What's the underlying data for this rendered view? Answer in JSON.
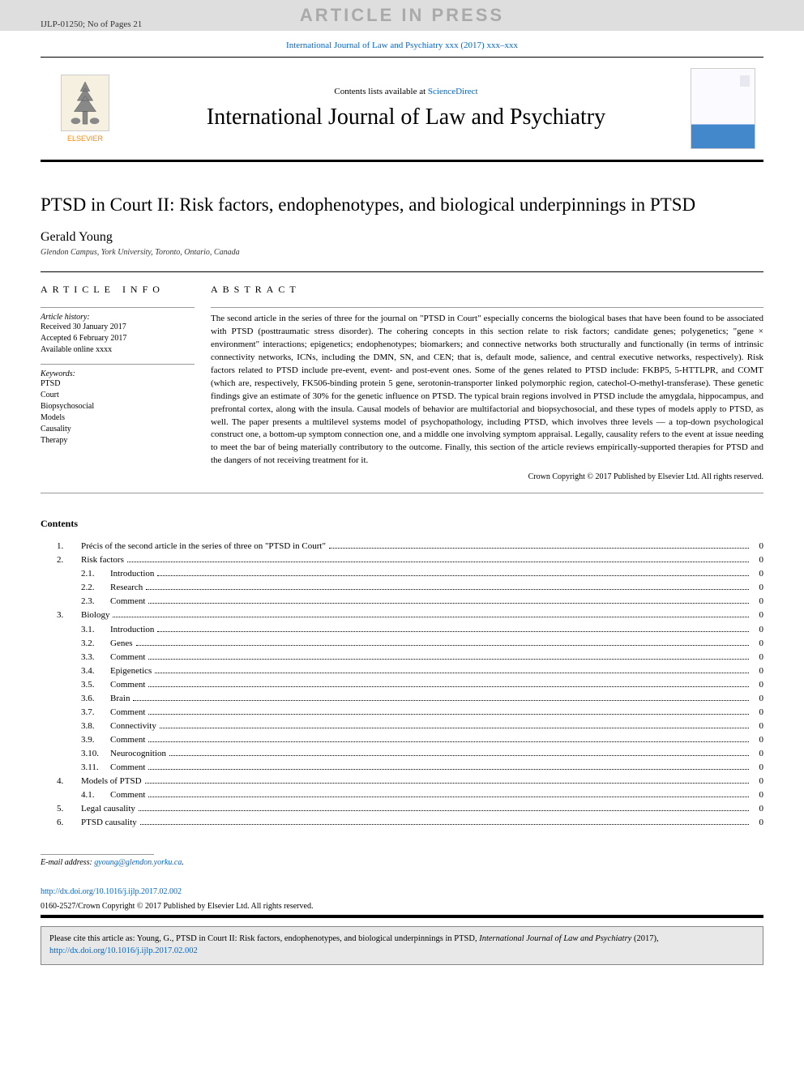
{
  "banner": {
    "text": "ARTICLE IN PRESS",
    "doc_id": "IJLP-01250; No of Pages 21"
  },
  "journal_ref_line": {
    "prefix": "",
    "link_text": "International Journal of Law and Psychiatry xxx (2017) xxx–xxx"
  },
  "header": {
    "contents_prefix": "Contents lists available at ",
    "contents_link": "ScienceDirect",
    "journal_name": "International Journal of Law and Psychiatry",
    "publisher": "ELSEVIER"
  },
  "article": {
    "title": "PTSD in Court II: Risk factors, endophenotypes, and biological underpinnings in PTSD",
    "author": "Gerald Young",
    "affiliation": "Glendon Campus, York University, Toronto, Ontario, Canada"
  },
  "info": {
    "heading": "article info",
    "history_title": "Article history:",
    "history": [
      "Received 30 January 2017",
      "Accepted 6 February 2017",
      "Available online xxxx"
    ],
    "keywords_title": "Keywords:",
    "keywords": [
      "PTSD",
      "Court",
      "Biopsychosocial",
      "Models",
      "Causality",
      "Therapy"
    ]
  },
  "abstract": {
    "heading": "abstract",
    "body": "The second article in the series of three for the journal on \"PTSD in Court\" especially concerns the biological bases that have been found to be associated with PTSD (posttraumatic stress disorder). The cohering concepts in this section relate to risk factors; candidate genes; polygenetics; \"gene × environment\" interactions; epigenetics; endophenotypes; biomarkers; and connective networks both structurally and functionally (in terms of intrinsic connectivity networks, ICNs, including the DMN, SN, and CEN; that is, default mode, salience, and central executive networks, respectively). Risk factors related to PTSD include pre-event, event- and post-event ones. Some of the genes related to PTSD include: FKBP5, 5-HTTLPR, and COMT (which are, respectively, FK506-binding protein 5 gene, serotonin-transporter linked polymorphic region, catechol-O-methyl-transferase). These genetic findings give an estimate of 30% for the genetic influence on PTSD. The typical brain regions involved in PTSD include the amygdala, hippocampus, and prefrontal cortex, along with the insula. Causal models of behavior are multifactorial and biopsychosocial, and these types of models apply to PTSD, as well. The paper presents a multilevel systems model of psychopathology, including PTSD, which involves three levels — a top-down psychological construct one, a bottom-up symptom connection one, and a middle one involving symptom appraisal. Legally, causality refers to the event at issue needing to meet the bar of being materially contributory to the outcome. Finally, this section of the article reviews empirically-supported therapies for PTSD and the dangers of not receiving treatment for it.",
    "copyright": "Crown Copyright © 2017 Published by Elsevier Ltd. All rights reserved."
  },
  "contents_heading": "Contents",
  "toc": [
    {
      "num": "1.",
      "label": "Précis of the second article in the series of three on \"PTSD in Court\"",
      "page": "0",
      "sub": []
    },
    {
      "num": "2.",
      "label": "Risk factors",
      "page": "0",
      "sub": [
        {
          "num": "2.1.",
          "label": "Introduction",
          "page": "0"
        },
        {
          "num": "2.2.",
          "label": "Research",
          "page": "0"
        },
        {
          "num": "2.3.",
          "label": "Comment",
          "page": "0"
        }
      ]
    },
    {
      "num": "3.",
      "label": "Biology",
      "page": "0",
      "sub": [
        {
          "num": "3.1.",
          "label": "Introduction",
          "page": "0"
        },
        {
          "num": "3.2.",
          "label": "Genes",
          "page": "0"
        },
        {
          "num": "3.3.",
          "label": "Comment",
          "page": "0"
        },
        {
          "num": "3.4.",
          "label": "Epigenetics",
          "page": "0"
        },
        {
          "num": "3.5.",
          "label": "Comment",
          "page": "0"
        },
        {
          "num": "3.6.",
          "label": "Brain",
          "page": "0"
        },
        {
          "num": "3.7.",
          "label": "Comment",
          "page": "0"
        },
        {
          "num": "3.8.",
          "label": "Connectivity",
          "page": "0"
        },
        {
          "num": "3.9.",
          "label": "Comment",
          "page": "0"
        },
        {
          "num": "3.10.",
          "label": "Neurocognition",
          "page": "0"
        },
        {
          "num": "3.11.",
          "label": "Comment",
          "page": "0"
        }
      ]
    },
    {
      "num": "4.",
      "label": "Models of PTSD",
      "page": "0",
      "sub": [
        {
          "num": "4.1.",
          "label": "Comment",
          "page": "0"
        }
      ]
    },
    {
      "num": "5.",
      "label": "Legal causality",
      "page": "0",
      "sub": []
    },
    {
      "num": "6.",
      "label": "PTSD causality",
      "page": "0",
      "sub": []
    }
  ],
  "footnote": {
    "label": "E-mail address: ",
    "email": "gyoung@glendon.yorku.ca"
  },
  "doi": {
    "url": "http://dx.doi.org/10.1016/j.ijlp.2017.02.002",
    "copy": "0160-2527/Crown Copyright © 2017 Published by Elsevier Ltd. All rights reserved."
  },
  "citebox": {
    "prefix": "Please cite this article as: Young, G., PTSD in Court II: Risk factors, endophenotypes, and biological underpinnings in PTSD, ",
    "journal_italic": "International Journal of Law and Psychiatry",
    "year": " (2017), ",
    "link": "http://dx.doi.org/10.1016/j.ijlp.2017.02.002"
  },
  "colors": {
    "banner_bg": "#dedede",
    "banner_text": "#aaaaaa",
    "link": "#0066cc",
    "publisher_orange": "#ff8800",
    "rule": "#000000",
    "light_rule": "#999999",
    "citebox_bg": "#e8e8e8"
  }
}
